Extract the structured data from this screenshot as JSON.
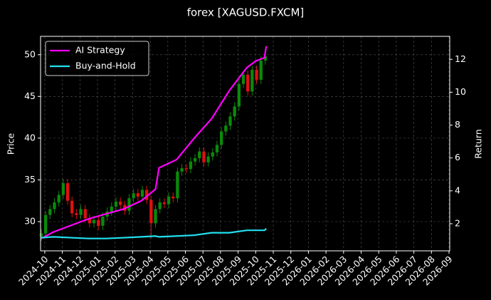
{
  "chart_data": {
    "type": "candlestick",
    "title": "forex [XAGUSD.FXCM]",
    "y_label": "Price",
    "y2_label": "Return",
    "xlim": [
      -0.24,
      23.04
    ],
    "xticks": [
      {
        "value": 0,
        "label": "2024-10"
      },
      {
        "value": 1,
        "label": "2024-11"
      },
      {
        "value": 2,
        "label": "2024-12"
      },
      {
        "value": 3,
        "label": "2025-01"
      },
      {
        "value": 4,
        "label": "2025-02"
      },
      {
        "value": 5,
        "label": "2025-03"
      },
      {
        "value": 6,
        "label": "2025-04"
      },
      {
        "value": 7,
        "label": "2025-05"
      },
      {
        "value": 8,
        "label": "2025-06"
      },
      {
        "value": 9,
        "label": "2025-07"
      },
      {
        "value": 10,
        "label": "2025-08"
      },
      {
        "value": 11,
        "label": "2025-09"
      },
      {
        "value": 12,
        "label": "2025-10"
      },
      {
        "value": 13,
        "label": "2025-11"
      },
      {
        "value": 14,
        "label": "2025-12"
      },
      {
        "value": 15,
        "label": "2026-01"
      },
      {
        "value": 16,
        "label": "2026-02"
      },
      {
        "value": 17,
        "label": "2026-03"
      },
      {
        "value": 18,
        "label": "2026-04"
      },
      {
        "value": 19,
        "label": "2026-05"
      },
      {
        "value": 20,
        "label": "2026-06"
      },
      {
        "value": 21,
        "label": "2026-07"
      },
      {
        "value": 22,
        "label": "2026-08"
      },
      {
        "value": 23,
        "label": "2026-09"
      }
    ],
    "ylim": [
      26.5,
      52.2
    ],
    "yticks": [
      30,
      35,
      40,
      45,
      50
    ],
    "y2lim": [
      0.35,
      13.4
    ],
    "y2ticks": [
      2,
      4,
      6,
      8,
      10,
      12
    ],
    "grid": true,
    "legend": "upper left",
    "up_color": "#0a8a0a",
    "down_color": "#e01010",
    "x": [
      -0.2,
      0.05,
      0.3,
      0.55,
      0.8,
      1.05,
      1.3,
      1.55,
      1.8,
      2.05,
      2.3,
      2.55,
      2.8,
      3.05,
      3.3,
      3.55,
      3.8,
      4.05,
      4.3,
      4.55,
      4.8,
      5.05,
      5.3,
      5.55,
      5.8,
      6.05,
      6.3,
      6.55,
      6.8,
      7.05,
      7.3,
      7.55,
      7.8,
      8.05,
      8.3,
      8.55,
      8.8,
      9.05,
      9.3,
      9.55,
      9.8,
      10.05,
      10.3,
      10.55,
      10.8,
      11.05,
      11.3,
      11.55,
      11.8,
      12.05,
      12.3,
      12.55
    ],
    "open": [
      28.2,
      28.6,
      30.8,
      31.5,
      32.3,
      33.2,
      34.6,
      32.5,
      31.0,
      30.8,
      31.5,
      30.4,
      29.8,
      30.2,
      29.5,
      30.6,
      31.2,
      31.8,
      32.4,
      32.0,
      31.3,
      32.8,
      33.4,
      33.0,
      33.8,
      32.6,
      29.8,
      31.5,
      32.3,
      32.1,
      33.0,
      32.8,
      36.0,
      36.4,
      36.3,
      37.2,
      37.6,
      38.4,
      37.1,
      37.8,
      38.3,
      39.2,
      40.8,
      41.5,
      42.6,
      43.8,
      46.5,
      47.6,
      45.6,
      48.2,
      47.0,
      49.3
    ],
    "high": [
      29.1,
      31.3,
      32.0,
      32.8,
      33.7,
      35.1,
      35.1,
      33.0,
      31.5,
      32.0,
      32.0,
      30.9,
      30.7,
      30.7,
      31.1,
      31.7,
      32.3,
      32.9,
      32.9,
      32.5,
      33.3,
      33.9,
      33.9,
      34.3,
      34.3,
      33.1,
      32.0,
      32.8,
      32.8,
      33.5,
      33.5,
      36.5,
      36.9,
      36.9,
      37.7,
      38.1,
      38.9,
      38.9,
      38.3,
      38.8,
      39.7,
      41.3,
      42.0,
      43.1,
      44.3,
      47.0,
      48.1,
      48.1,
      48.7,
      48.7,
      49.8,
      50.3
    ],
    "low": [
      27.7,
      28.1,
      30.3,
      31.0,
      31.8,
      32.7,
      32.0,
      30.5,
      30.3,
      30.3,
      29.9,
      29.3,
      29.3,
      29.0,
      29.0,
      30.1,
      30.7,
      31.3,
      31.5,
      30.8,
      30.8,
      32.3,
      32.5,
      32.5,
      32.1,
      28.0,
      29.3,
      31.0,
      31.6,
      31.6,
      32.3,
      32.3,
      35.5,
      35.8,
      35.8,
      36.7,
      37.1,
      36.6,
      36.6,
      37.3,
      37.8,
      38.7,
      40.3,
      41.0,
      42.1,
      43.3,
      46.0,
      45.1,
      45.1,
      46.5,
      46.5,
      48.8
    ],
    "close": [
      28.6,
      30.8,
      31.5,
      32.3,
      33.2,
      34.6,
      32.5,
      31.0,
      30.8,
      31.5,
      30.4,
      29.8,
      30.2,
      29.5,
      30.6,
      31.2,
      31.8,
      32.4,
      32.0,
      31.3,
      32.8,
      33.4,
      33.0,
      33.8,
      32.6,
      29.8,
      31.5,
      32.3,
      32.1,
      33.0,
      32.8,
      36.0,
      36.4,
      36.3,
      37.2,
      37.6,
      38.4,
      37.1,
      37.8,
      38.3,
      39.2,
      40.8,
      41.5,
      42.6,
      43.8,
      46.5,
      47.6,
      45.6,
      48.2,
      47.0,
      49.3,
      49.8
    ],
    "series": [
      {
        "name": "AI Strategy",
        "color": "#ff00ff",
        "axis": "y2",
        "x": [
          -0.2,
          0.5,
          1.5,
          2.5,
          3.5,
          4.5,
          5.5,
          6.3,
          6.5,
          7.5,
          8.5,
          9.5,
          10.5,
          11.5,
          12,
          12.5,
          12.6
        ],
        "values": [
          1.1,
          1.5,
          1.9,
          2.3,
          2.6,
          2.9,
          3.4,
          4.1,
          5.4,
          5.9,
          7.2,
          8.4,
          10.1,
          11.5,
          11.9,
          12.1,
          12.8
        ]
      },
      {
        "name": "Buy-and-Hold",
        "color": "#22e0f0",
        "axis": "y2",
        "x": [
          -0.2,
          0.5,
          1.5,
          2.5,
          3.5,
          4.5,
          5.5,
          6.3,
          6.5,
          7.5,
          8.5,
          9.5,
          10.5,
          11.5,
          12,
          12.5,
          12.6
        ],
        "values": [
          1.15,
          1.2,
          1.15,
          1.1,
          1.1,
          1.15,
          1.2,
          1.25,
          1.2,
          1.25,
          1.3,
          1.45,
          1.45,
          1.6,
          1.6,
          1.6,
          1.7
        ]
      }
    ]
  }
}
